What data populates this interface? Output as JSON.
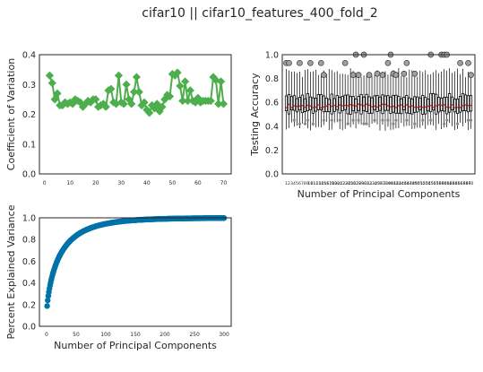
{
  "figure": {
    "suptitle": "cifar10 || cifar10_features_400_fold_2"
  },
  "chart_data": [
    {
      "type": "line",
      "subplot": "top-left",
      "title": "",
      "xlabel": "",
      "ylabel": "Coefficient of Variation",
      "xlim": [
        -2,
        73
      ],
      "ylim": [
        0,
        0.4
      ],
      "xticks": [
        0,
        10,
        20,
        30,
        40,
        50,
        60,
        70
      ],
      "yticks": [
        0.0,
        0.1,
        0.2,
        0.3,
        0.4
      ],
      "color": "#4cae4c",
      "marker": "diamond",
      "grid": false,
      "x": [
        2,
        3,
        4,
        5,
        6,
        7,
        8,
        9,
        10,
        11,
        12,
        13,
        14,
        15,
        16,
        17,
        18,
        19,
        20,
        21,
        22,
        23,
        24,
        25,
        26,
        27,
        28,
        29,
        30,
        31,
        32,
        33,
        34,
        35,
        36,
        37,
        38,
        39,
        40,
        41,
        42,
        43,
        44,
        45,
        46,
        47,
        48,
        49,
        50,
        51,
        52,
        53,
        54,
        55,
        56,
        57,
        58,
        59,
        60,
        61,
        62,
        63,
        64,
        65,
        66,
        67,
        68,
        69,
        70
      ],
      "values": [
        0.33,
        0.305,
        0.25,
        0.27,
        0.23,
        0.23,
        0.24,
        0.235,
        0.24,
        0.235,
        0.25,
        0.245,
        0.24,
        0.225,
        0.235,
        0.245,
        0.24,
        0.25,
        0.25,
        0.225,
        0.23,
        0.235,
        0.225,
        0.28,
        0.285,
        0.24,
        0.235,
        0.33,
        0.24,
        0.235,
        0.3,
        0.25,
        0.235,
        0.275,
        0.325,
        0.275,
        0.23,
        0.24,
        0.215,
        0.205,
        0.23,
        0.22,
        0.235,
        0.21,
        0.225,
        0.25,
        0.265,
        0.26,
        0.335,
        0.33,
        0.34,
        0.295,
        0.245,
        0.31,
        0.245,
        0.28,
        0.245,
        0.24,
        0.255,
        0.24,
        0.245,
        0.245,
        0.245,
        0.245,
        0.325,
        0.315,
        0.235,
        0.31,
        0.235
      ]
    },
    {
      "type": "box",
      "subplot": "top-right",
      "title": "",
      "xlabel": "Number of Principal Components",
      "ylabel": "Testing Accuracy",
      "ylim": [
        0,
        1.0
      ],
      "yticks": [
        0.0,
        0.2,
        0.4,
        0.6,
        0.8,
        1.0
      ],
      "n_boxes": 70,
      "xticklabels": [
        "1",
        "2",
        "3",
        "4",
        "5",
        "6",
        "7",
        "8",
        "9",
        "10",
        "11",
        "12",
        "13",
        "14",
        "15",
        "16",
        "17",
        "18",
        "19",
        "20",
        "21",
        "22",
        "23",
        "24",
        "25",
        "26",
        "27",
        "28",
        "29",
        "30",
        "31",
        "32",
        "33",
        "34",
        "35",
        "36",
        "37",
        "38",
        "39",
        "40",
        "41",
        "42",
        "43",
        "44",
        "45",
        "46",
        "47",
        "48",
        "49",
        "50",
        "51",
        "52",
        "53",
        "54",
        "55",
        "56",
        "57",
        "58",
        "59",
        "60",
        "61",
        "62",
        "63",
        "64",
        "65",
        "66",
        "67",
        "68",
        "69",
        "70"
      ],
      "median_color": "#d62728",
      "box_fill": "#ffffff",
      "box_edge": "#000000",
      "median_approx": 0.57,
      "q1_approx": 0.52,
      "q3_approx": 0.65,
      "whisker_low_approx": 0.4,
      "whisker_high_approx": 0.85,
      "outliers_high_approx": [
        0.83,
        0.84,
        0.93,
        1.0
      ],
      "outliers_low_approx": [
        0.42,
        0.45
      ]
    },
    {
      "type": "scatter",
      "subplot": "bottom-left",
      "title": "",
      "xlabel": "Number of Principal Components",
      "ylabel": "Percent Explained Variance",
      "xlim": [
        -12,
        312
      ],
      "ylim": [
        0,
        1.0
      ],
      "xticks": [
        0,
        50,
        100,
        150,
        200,
        250,
        300
      ],
      "yticks": [
        0.0,
        0.2,
        0.4,
        0.6,
        0.8,
        1.0
      ],
      "color": "#0072a8",
      "marker": "circle",
      "n_points": 300,
      "curve": "cumulative explained variance; starts ~0.10 at x=1, ~0.50 at x=10, ~0.76 at x=50, ~0.90 at x=100, ~0.96 at x=150, ~0.99 at x=200, 1.0 at x=300"
    }
  ]
}
